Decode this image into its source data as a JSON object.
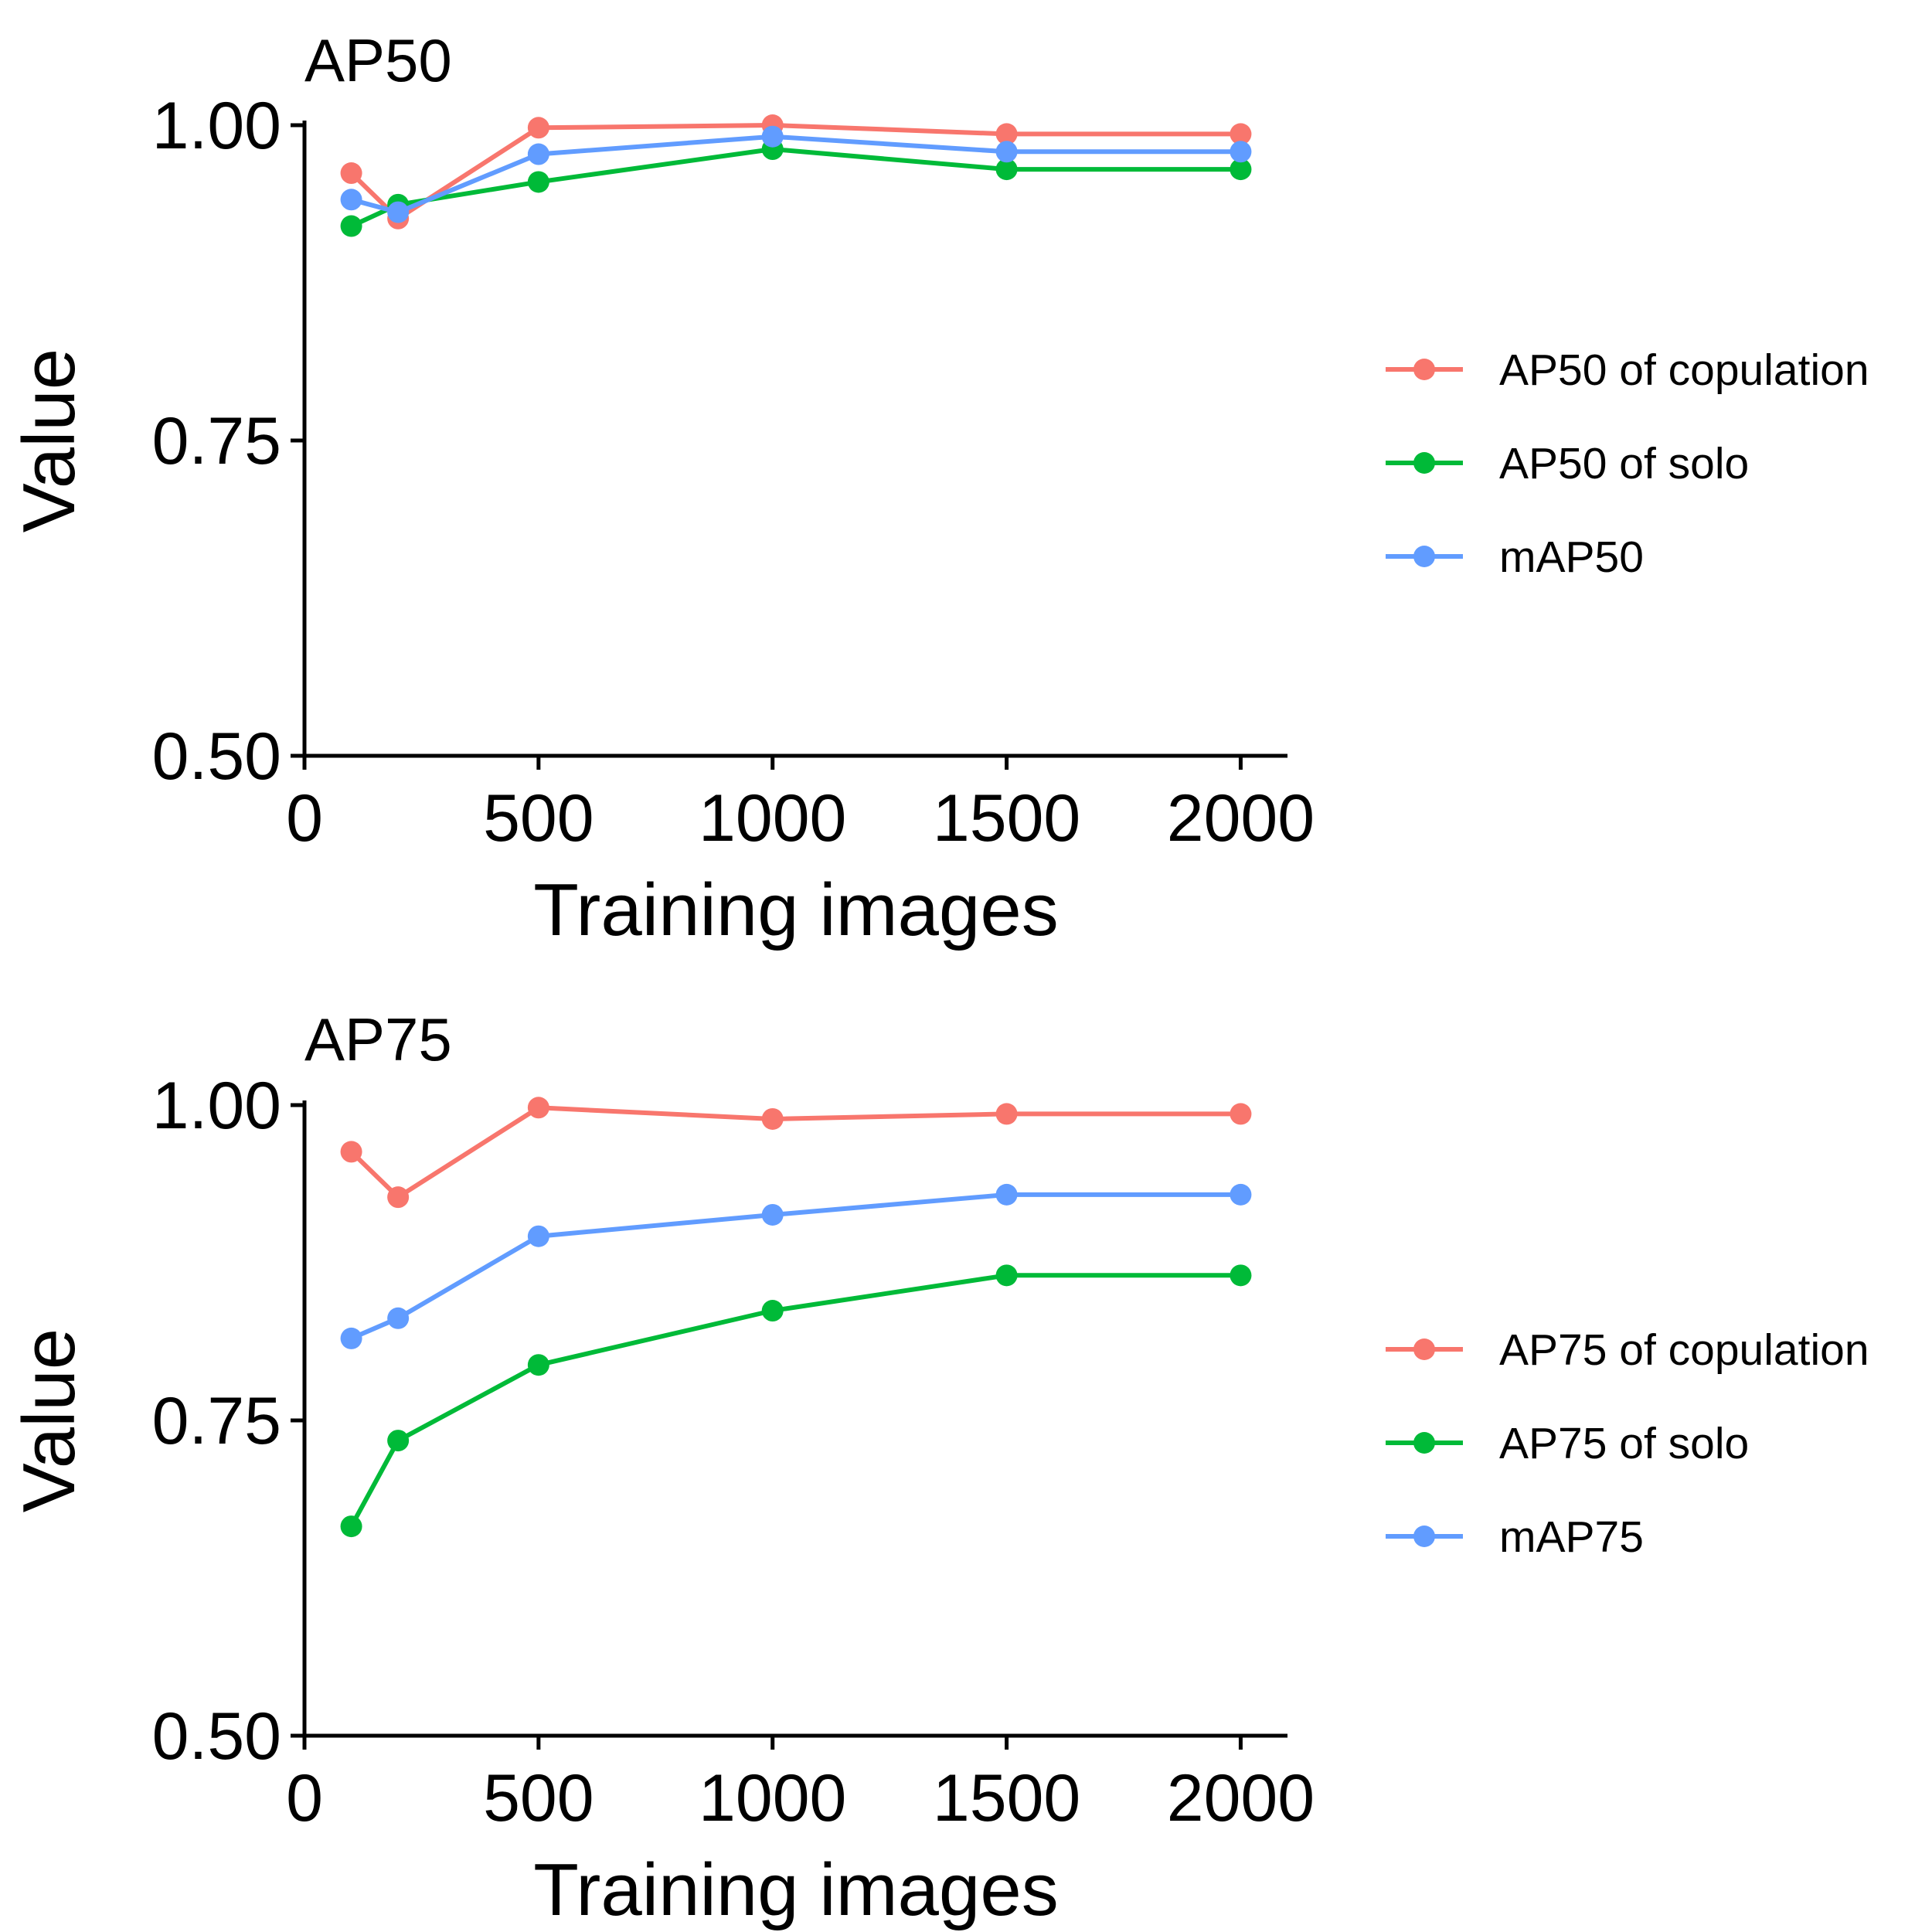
{
  "chart_data": [
    {
      "type": "line",
      "title": "AP50",
      "xlabel": "Training images",
      "ylabel": "Value",
      "xlim": [
        0,
        2100
      ],
      "ylim": [
        0.5,
        1.0
      ],
      "x_ticks": [
        0,
        500,
        1000,
        1500,
        2000
      ],
      "y_ticks": [
        0.5,
        0.75,
        1.0
      ],
      "x_tick_labels": [
        "0",
        "500",
        "1000",
        "1500",
        "2000"
      ],
      "y_tick_labels": [
        "0.50",
        "0.75",
        "1.00"
      ],
      "legend_position": "right",
      "grid": false,
      "x": [
        100,
        200,
        500,
        1000,
        1500,
        2000
      ],
      "series": [
        {
          "name": "AP50 of copulation",
          "color": "#F8766D",
          "values": [
            0.962,
            0.926,
            0.998,
            1.0,
            0.993,
            0.993
          ]
        },
        {
          "name": "AP50 of solo",
          "color": "#00BA38",
          "values": [
            0.92,
            0.937,
            0.955,
            0.981,
            0.965,
            0.965
          ]
        },
        {
          "name": "mAP50",
          "color": "#619CFF",
          "values": [
            0.941,
            0.931,
            0.977,
            0.991,
            0.979,
            0.979
          ]
        }
      ]
    },
    {
      "type": "line",
      "title": "AP75",
      "xlabel": "Training images",
      "ylabel": "Value",
      "xlim": [
        0,
        2100
      ],
      "ylim": [
        0.5,
        1.0
      ],
      "x_ticks": [
        0,
        500,
        1000,
        1500,
        2000
      ],
      "y_ticks": [
        0.5,
        0.75,
        1.0
      ],
      "x_tick_labels": [
        "0",
        "500",
        "1000",
        "1500",
        "2000"
      ],
      "y_tick_labels": [
        "0.50",
        "0.75",
        "1.00"
      ],
      "legend_position": "right",
      "grid": false,
      "x": [
        100,
        200,
        500,
        1000,
        1500,
        2000
      ],
      "series": [
        {
          "name": "AP75 of copulation",
          "color": "#F8766D",
          "values": [
            0.963,
            0.927,
            0.998,
            0.989,
            0.993,
            0.993
          ]
        },
        {
          "name": "AP75 of solo",
          "color": "#00BA38",
          "values": [
            0.666,
            0.734,
            0.794,
            0.837,
            0.865,
            0.865
          ]
        },
        {
          "name": "mAP75",
          "color": "#619CFF",
          "values": [
            0.815,
            0.831,
            0.896,
            0.913,
            0.929,
            0.929
          ]
        }
      ]
    }
  ]
}
